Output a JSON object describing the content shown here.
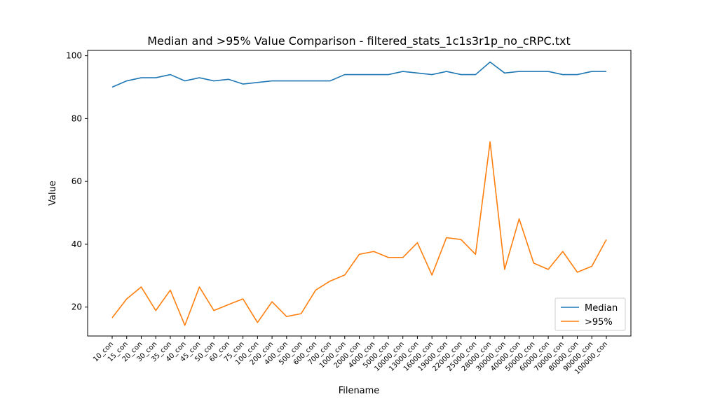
{
  "chart_data": {
    "type": "line",
    "title": "Median and >95% Value Comparison - filtered_stats_1c1s3r1p_no_cRPC.txt",
    "xlabel": "Filename",
    "ylabel": "Value",
    "ylim": [
      10.8,
      101.7
    ],
    "yticks": [
      20,
      40,
      60,
      80,
      100
    ],
    "ytick_labels": [
      "20",
      "40",
      "60",
      "80",
      "100"
    ],
    "grid": false,
    "legend_position": "lower-right",
    "categories": [
      "10_con",
      "15_con",
      "20_con",
      "30_con",
      "35_con",
      "40_con",
      "45_con",
      "50_con",
      "60_con",
      "75_con",
      "100_con",
      "200_con",
      "400_con",
      "500_con",
      "600_con",
      "700_con",
      "1000_con",
      "2000_con",
      "4000_con",
      "5000_con",
      "10000_con",
      "13000_con",
      "16000_con",
      "19000_con",
      "22000_con",
      "25000_con",
      "28000_con",
      "30000_con",
      "40000_con",
      "50000_con",
      "60000_con",
      "70000_con",
      "80000_con",
      "90000_con",
      "100000_con"
    ],
    "series": [
      {
        "name": "Median",
        "color": "#1f77b4",
        "values": [
          90,
          92,
          93,
          93,
          94,
          92,
          93,
          92,
          92.5,
          91,
          91.5,
          92,
          92,
          92,
          92,
          92,
          94,
          94,
          94,
          94,
          95,
          94.5,
          94,
          95,
          94,
          94,
          98,
          94.5,
          95,
          95,
          95,
          94,
          94,
          95,
          95
        ]
      },
      {
        "name": ">95%",
        "color": "#ff7f0e",
        "values": [
          16.6,
          22.6,
          26.4,
          18.9,
          25.4,
          14.2,
          26.4,
          18.9,
          20.8,
          22.6,
          15.1,
          21.7,
          17.0,
          17.9,
          25.4,
          28.3,
          30.2,
          36.8,
          37.7,
          35.8,
          35.8,
          40.5,
          30.2,
          42.1,
          41.5,
          36.8,
          72.6,
          32.0,
          48.1,
          34.0,
          32.0,
          37.7,
          31.1,
          33.0,
          41.5
        ]
      }
    ]
  }
}
